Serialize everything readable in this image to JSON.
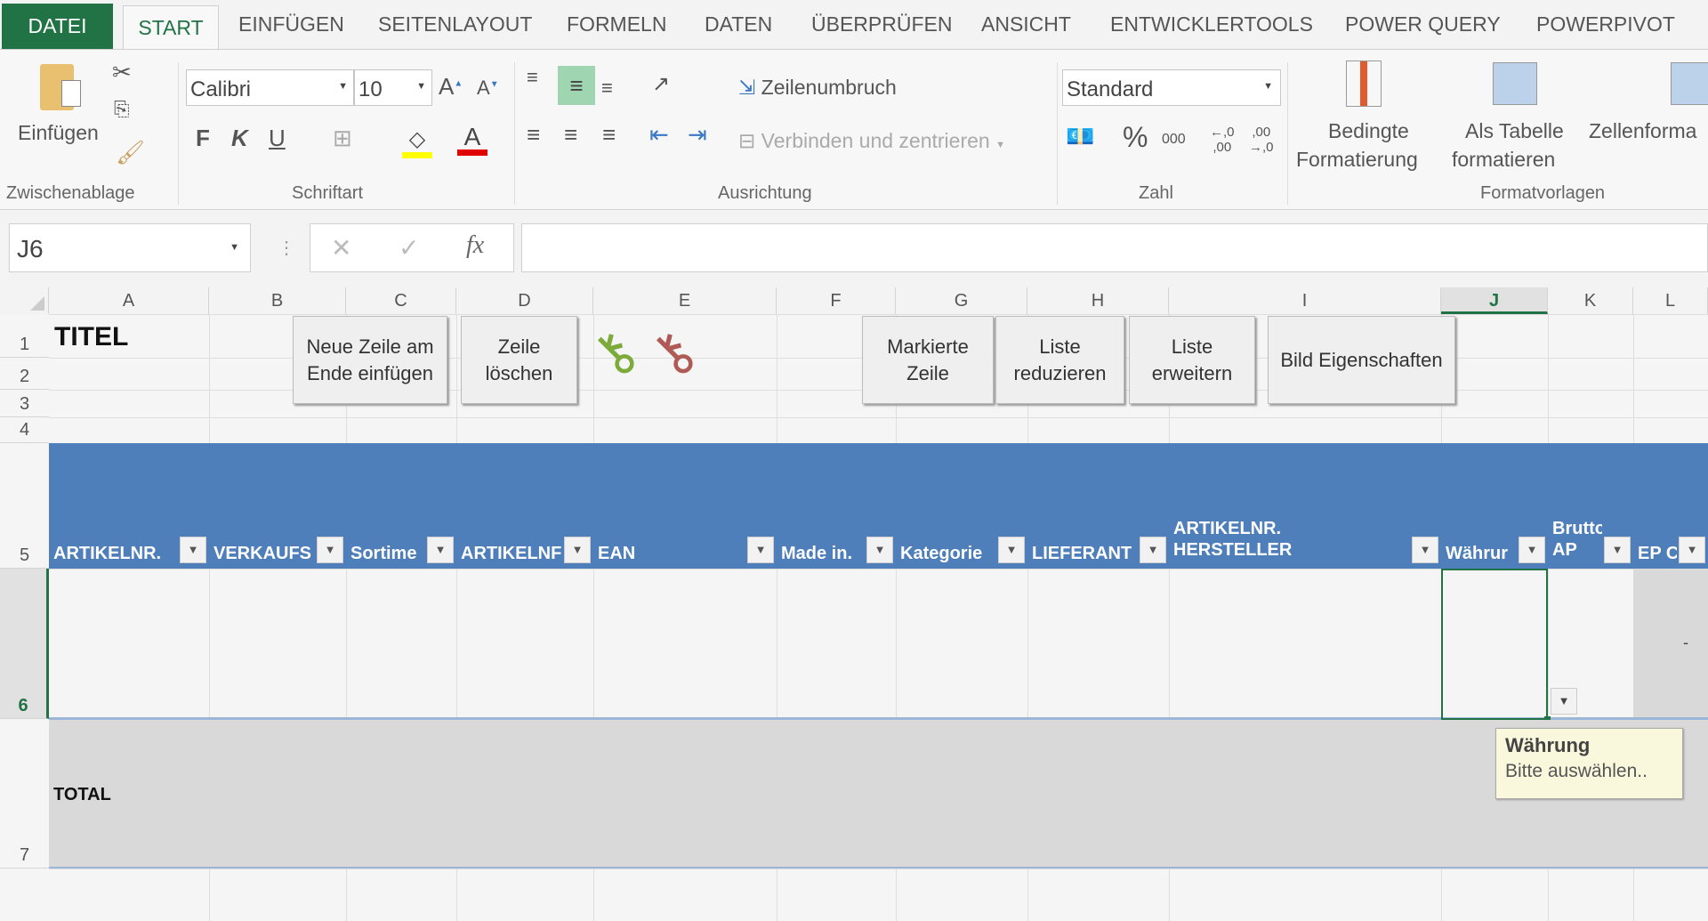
{
  "ribbon": {
    "tabs": [
      "DATEI",
      "START",
      "EINFÜGEN",
      "SEITENLAYOUT",
      "FORMELN",
      "DATEN",
      "ÜBERPRÜFEN",
      "ANSICHT",
      "ENTWICKLERTOOLS",
      "POWER QUERY",
      "POWERPIVOT"
    ],
    "active_tab": "START",
    "groups": [
      "Zwischenablage",
      "Schriftart",
      "Ausrichtung",
      "Zahl",
      "Formatvorlagen"
    ],
    "paste_label": "Einfügen",
    "font_name": "Calibri",
    "font_size": "10",
    "bold": "F",
    "italic": "K",
    "underline": "U",
    "wrap_text": "Zeilenumbruch",
    "merge_center": "Verbinden und zentrieren",
    "number_format": "Standard",
    "percent": "%",
    "thousands": "000",
    "cond_format": [
      "Bedingte",
      "Formatierung"
    ],
    "as_table": [
      "Als Tabelle",
      "formatieren"
    ],
    "cell_styles": "Zellenforma",
    "colors": {
      "file_tab": "#217346",
      "font_color": "#e00000",
      "highlight": "#ffff00"
    }
  },
  "formula_bar": {
    "name_box": "J6",
    "fx": "fx",
    "cancel": "✕",
    "enter": "✓",
    "value": ""
  },
  "sheet": {
    "columns": [
      "A",
      "B",
      "C",
      "D",
      "E",
      "F",
      "G",
      "H",
      "I",
      "J",
      "K",
      "L"
    ],
    "selected_column": "J",
    "rows": [
      "1",
      "2",
      "3",
      "4",
      "5",
      "6",
      "7"
    ],
    "title": "TITEL",
    "buttons": [
      [
        "Neue Zeile am",
        "Ende einfügen"
      ],
      [
        "Zeile",
        "löschen"
      ],
      [
        "Markierte",
        "Zeile"
      ],
      [
        "Liste",
        "reduzieren"
      ],
      [
        "Liste",
        "erweitern"
      ],
      [
        "Bild Eigenschaften"
      ]
    ],
    "headers": [
      "ARTIKELNR.",
      "VERKAUFS",
      "Sortime",
      "ARTIKELNF",
      "EAN",
      "Made in.",
      "Kategorie",
      "LIEFERANT",
      "ARTIKELNR.\nHERSTELLER",
      "Währur",
      "Brutto\nAP",
      "EP CH"
    ],
    "header_color": "#4e7fbb",
    "total_label": "TOTAL",
    "l6_value": "-",
    "tooltip": {
      "title": "Währung",
      "text": "Bitte auswählen.."
    }
  }
}
